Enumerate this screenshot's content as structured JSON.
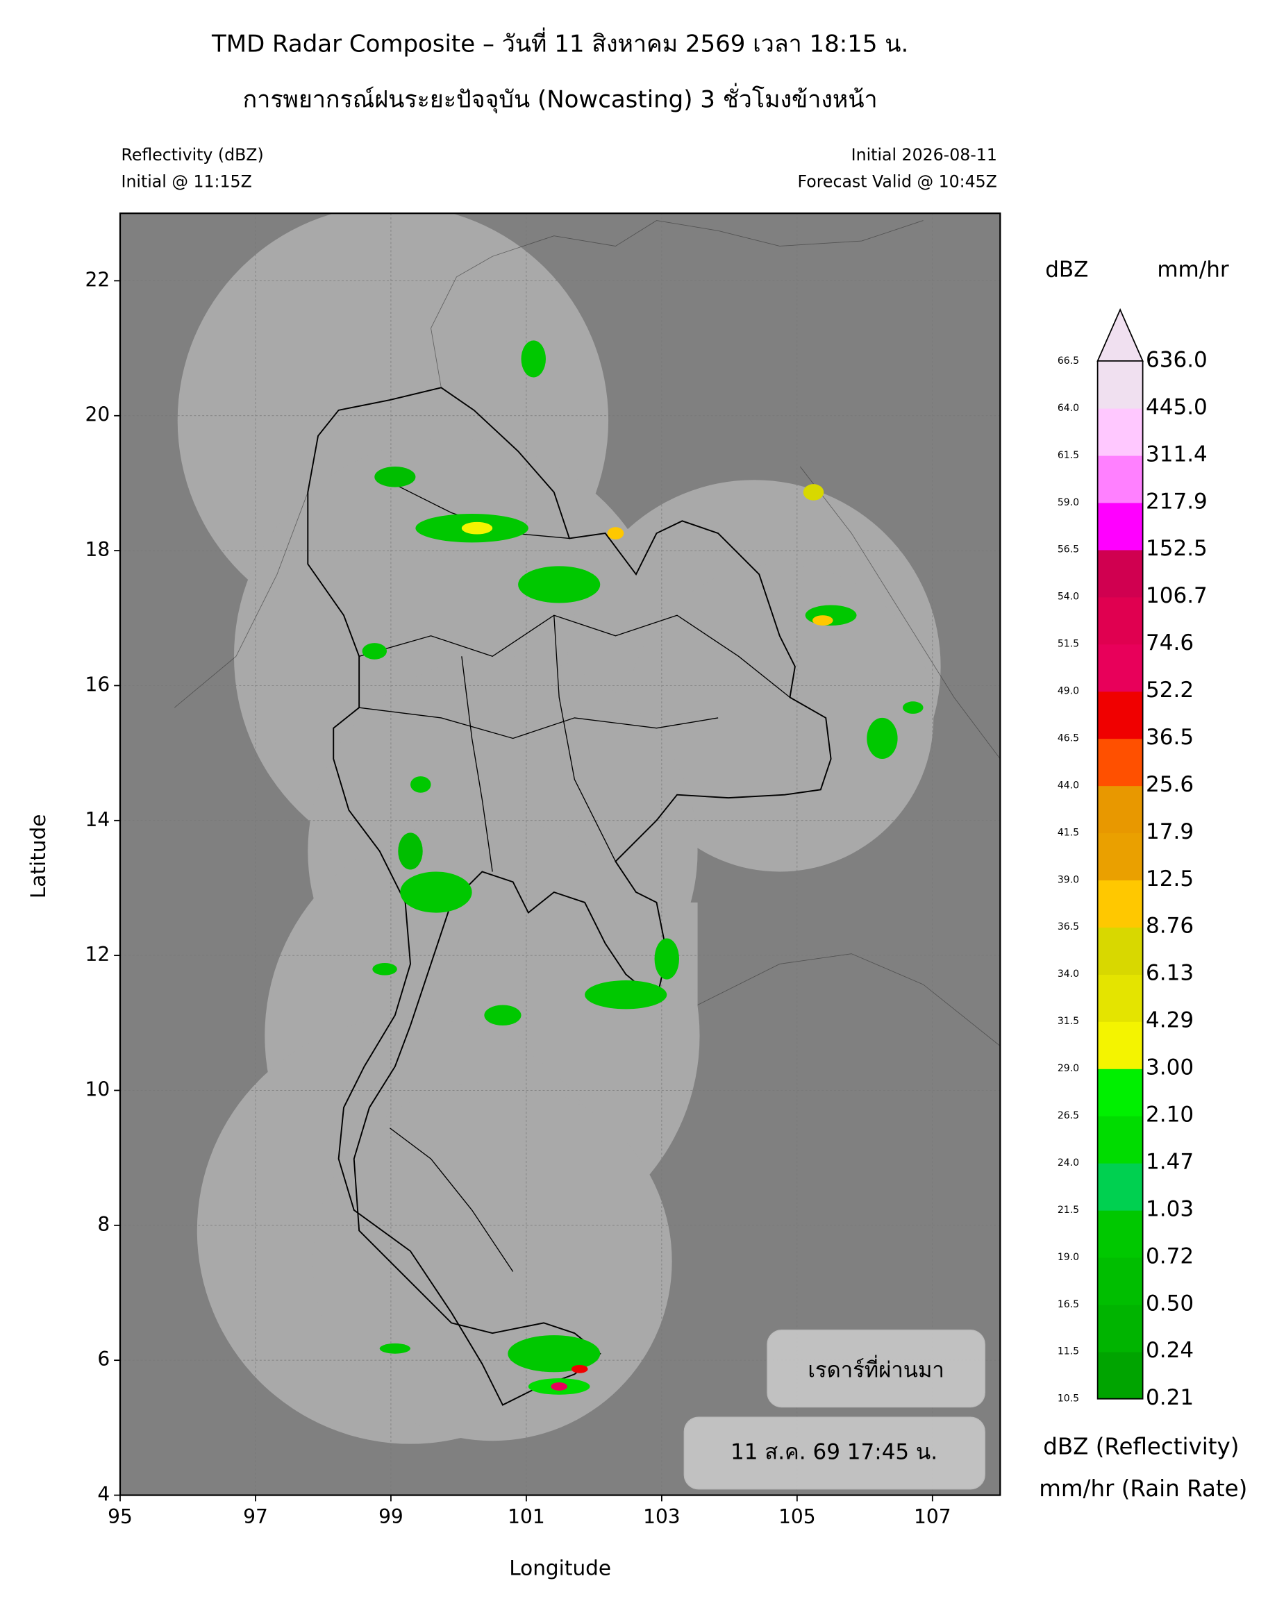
{
  "header": {
    "title_line1": "TMD Radar Composite – วันที่ 11 สิงหาคม 2569 เวลา 18:15 น.",
    "title_line2": "การพยากรณ์ฝนระยะปัจจุบัน (Nowcasting) 3 ชั่วโมงข้างหน้า",
    "left_line1": "Reflectivity (dBZ)",
    "left_line2": "Initial @ 11:15Z",
    "right_line1": "Initial 2026-08-11",
    "right_line2": "Forecast Valid @ 10:45Z"
  },
  "map": {
    "xlabel": "Longitude",
    "ylabel": "Latitude",
    "xlim": [
      95,
      108
    ],
    "ylim": [
      4,
      23
    ],
    "xticks": [
      95,
      97,
      99,
      101,
      103,
      105,
      107
    ],
    "yticks": [
      4,
      6,
      8,
      10,
      12,
      14,
      16,
      18,
      20,
      22
    ],
    "grid": true,
    "background_color": "#808080",
    "coverage_color": "#a9a9a9"
  },
  "colorbar": {
    "dbz_header": "dBZ",
    "rate_header": "mm/hr",
    "dbz_labels": [
      "10.5",
      "11.5",
      "16.5",
      "19.0",
      "21.5",
      "24.0",
      "26.5",
      "29.0",
      "31.5",
      "34.0",
      "36.5",
      "39.0",
      "41.5",
      "44.0",
      "46.5",
      "49.0",
      "51.5",
      "54.0",
      "56.5",
      "59.0",
      "61.5",
      "64.0",
      "66.5"
    ],
    "rate_labels": [
      "0.21",
      "0.24",
      "0.50",
      "0.72",
      "1.03",
      "1.47",
      "2.10",
      "3.00",
      "4.29",
      "6.13",
      "8.76",
      "12.5",
      "17.9",
      "25.6",
      "36.5",
      "52.2",
      "74.6",
      "106.7",
      "152.5",
      "217.9",
      "311.4",
      "445.0",
      "636.0"
    ],
    "colors": [
      "#00a400",
      "#00b400",
      "#00be00",
      "#00c800",
      "#00d050",
      "#00dc00",
      "#00f000",
      "#f4f400",
      "#e4e400",
      "#d8d800",
      "#ffc800",
      "#eaa000",
      "#e89800",
      "#ff5000",
      "#f00000",
      "#e8005a",
      "#e00050",
      "#d00050",
      "#ff00ff",
      "#ff80ff",
      "#ffc8ff",
      "#f0e0f0"
    ],
    "extend_color": "#f0e0f0",
    "legend_line1": "dBZ (Reflectivity)",
    "legend_line2": "mm/hr (Rain Rate)"
  },
  "overlay": {
    "previous_radar": "เรดาร์ที่ผ่านมา",
    "previous_time": "11 ส.ค. 69 17:45 น."
  }
}
